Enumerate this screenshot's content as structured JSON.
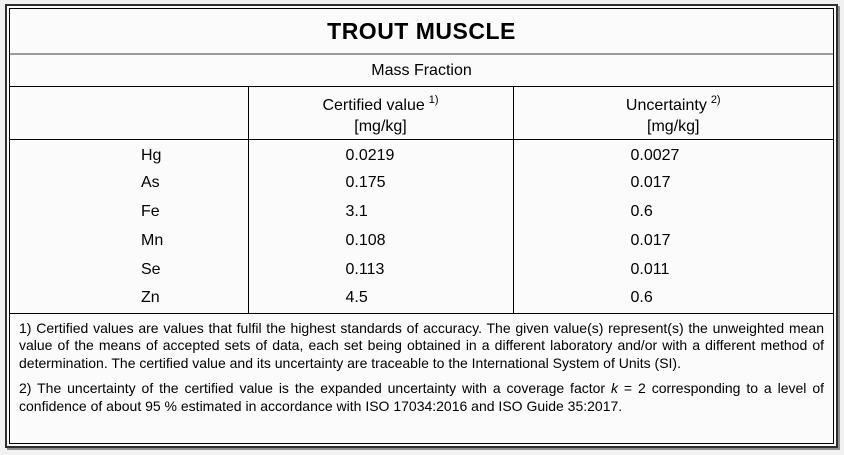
{
  "title": "TROUT MUSCLE",
  "subtitle": "Mass Fraction",
  "columns": {
    "certified": {
      "label": "Certified value",
      "sup": "1)",
      "unit": "[mg/kg]"
    },
    "uncertainty": {
      "label": "Uncertainty",
      "sup": "2)",
      "unit": "[mg/kg]"
    }
  },
  "rows": [
    {
      "element": "Hg",
      "certified": "0.0219",
      "uncertainty": "0.0027"
    },
    {
      "element": "As",
      "certified": "0.175",
      "uncertainty": "0.017"
    },
    {
      "element": "Fe",
      "certified": "3.1",
      "uncertainty": "0.6"
    },
    {
      "element": "Mn",
      "certified": "0.108",
      "uncertainty": "0.017"
    },
    {
      "element": "Se",
      "certified": "0.113",
      "uncertainty": "0.011"
    },
    {
      "element": "Zn",
      "certified": "4.5",
      "uncertainty": "0.6"
    }
  ],
  "footnotes": {
    "note1": "1) Certified values are values that fulfil the highest standards of accuracy. The given value(s) represent(s) the unweighted mean value of the means of accepted sets of data, each set being obtained in a different laboratory and/or with a different method of determination. The certified value and its uncertainty are traceable to the International System of Units (SI).",
    "note2_pre": "2) The uncertainty of the certified value is the expanded uncertainty with a coverage factor ",
    "note2_k": "k",
    "note2_post": " = 2 corresponding to a level of confidence of about 95 % estimated in accordance with ISO 17034:2016 and ISO Guide 35:2017."
  }
}
